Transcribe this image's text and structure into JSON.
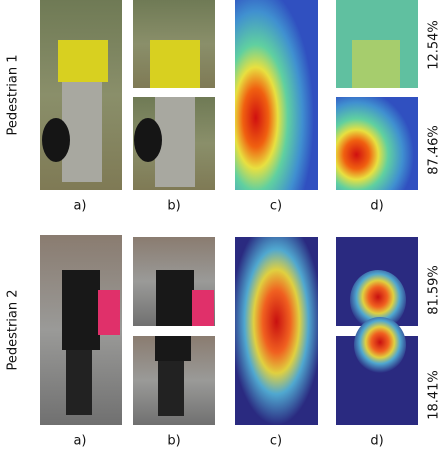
{
  "rows": [
    {
      "label": "Pedestrian 1",
      "panels": [
        "a)",
        "b)",
        "c)",
        "d)"
      ],
      "top_score": "12.54%",
      "bottom_score": "87.46%"
    },
    {
      "label": "Pedestrian 2",
      "panels": [
        "a)",
        "b)",
        "c)",
        "d)"
      ],
      "top_score": "81.59%",
      "bottom_score": "18.41%"
    }
  ]
}
